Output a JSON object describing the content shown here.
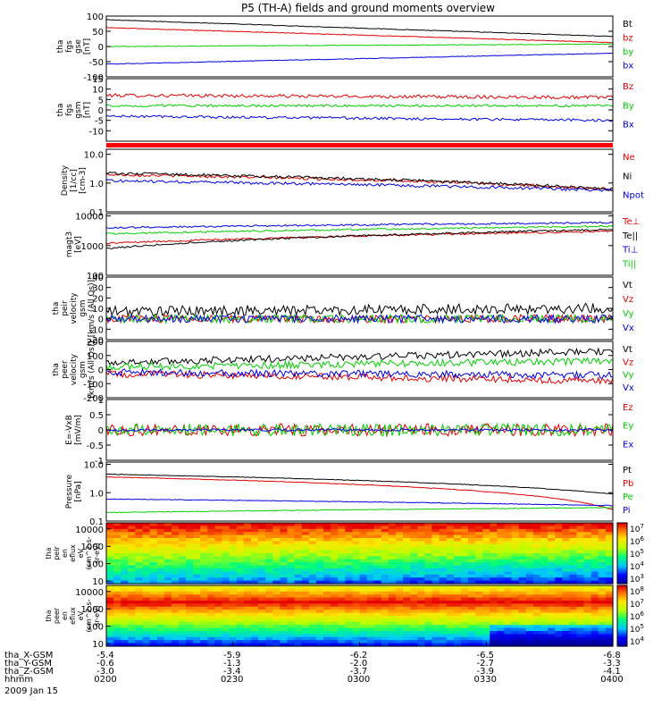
{
  "chart_data": {
    "type": "line",
    "title": "P5 (TH-A) fields and ground moments overview",
    "date": "2009 Jan 15",
    "panels": [
      {
        "id": "fgs-gse",
        "ylabel": [
          "tha",
          "fgs",
          "gse",
          "[nT]"
        ],
        "ylim": [
          -100,
          100
        ],
        "yticks": [
          100,
          50,
          0,
          -50,
          -100
        ],
        "log": false,
        "series": [
          {
            "name": "Bt",
            "color": "#000000",
            "start": 88,
            "end": 33,
            "noise": 1
          },
          {
            "name": "bz",
            "color": "#e00000",
            "start": 62,
            "end": 13,
            "noise": 1
          },
          {
            "name": "by",
            "color": "#00d000",
            "start": 0,
            "end": 8,
            "noise": 1
          },
          {
            "name": "bx",
            "color": "#0000e0",
            "start": -58,
            "end": -22,
            "noise": 1
          }
        ]
      },
      {
        "id": "fgs-gsm",
        "ylabel": [
          "tha",
          "fgs",
          "gsm",
          "[nT]"
        ],
        "ylim": [
          -15,
          15
        ],
        "yticks": [
          15,
          10,
          5,
          0,
          -5,
          -10
        ],
        "log": false,
        "series": [
          {
            "name": "Bz",
            "color": "#e00000",
            "start": 7,
            "end": 6,
            "noise": 0.8
          },
          {
            "name": "By",
            "color": "#00d000",
            "start": 2,
            "end": 2,
            "noise": 0.6
          },
          {
            "name": "Bx",
            "color": "#0000e0",
            "start": -3,
            "end": -5,
            "noise": 0.6
          }
        ]
      },
      {
        "id": "density",
        "ylabel": [
          "Density",
          "[1/cc]",
          "[cm-3]"
        ],
        "ylim": [
          0.1,
          15
        ],
        "yticks": [
          10.0,
          1.0,
          0.1
        ],
        "log": true,
        "series": [
          {
            "name": "Ne",
            "color": "#e00000",
            "start": 2.0,
            "end": 0.6,
            "noise": 0.05
          },
          {
            "name": "Ni",
            "color": "#000000",
            "start": 2.2,
            "end": 0.6,
            "noise": 0.05
          },
          {
            "name": "Npot",
            "color": "#0000e0",
            "start": 1.2,
            "end": 0.55,
            "noise": 0.05
          }
        ]
      },
      {
        "id": "temperature",
        "ylabel": [
          "magt3",
          "[eV]"
        ],
        "ylim": [
          100,
          12000
        ],
        "yticks": [
          10000,
          1000,
          100
        ],
        "log": true,
        "series": [
          {
            "name": "Te⊥",
            "color": "#e00000",
            "start": 1200,
            "end": 3000,
            "noise": 0.03
          },
          {
            "name": "Te||",
            "color": "#000000",
            "start": 800,
            "end": 3500,
            "noise": 0.03
          },
          {
            "name": "Ti⊥",
            "color": "#0000e0",
            "start": 4000,
            "end": 6000,
            "noise": 0.03
          },
          {
            "name": "Ti||",
            "color": "#00d000",
            "start": 2500,
            "end": 4500,
            "noise": 0.03
          }
        ]
      },
      {
        "id": "peir-velocity",
        "ylabel": [
          "tha",
          "peir",
          "velocity",
          "gsm",
          "[km/s (All Qs)]"
        ],
        "ylim": [
          -20,
          40
        ],
        "yticks": [
          40,
          30,
          20,
          10,
          0,
          -10,
          -20
        ],
        "log": false,
        "series": [
          {
            "name": "Vt",
            "color": "#000000",
            "start": 7,
            "end": 10,
            "noise": 5
          },
          {
            "name": "Vz",
            "color": "#e00000",
            "start": 0,
            "end": 0,
            "noise": 4
          },
          {
            "name": "Vy",
            "color": "#00d000",
            "start": 0,
            "end": 0,
            "noise": 4
          },
          {
            "name": "Vx",
            "color": "#0000e0",
            "start": 0,
            "end": 0,
            "noise": 4
          }
        ]
      },
      {
        "id": "peer-velocity",
        "ylabel": [
          "tha",
          "peer",
          "velocity",
          "gsm",
          "[km/s (All Qs)]"
        ],
        "ylim": [
          -200,
          200
        ],
        "yticks": [
          200,
          100,
          0,
          -100,
          -200
        ],
        "log": false,
        "series": [
          {
            "name": "Vt",
            "color": "#000000",
            "start": 50,
            "end": 130,
            "noise": 25
          },
          {
            "name": "Vz",
            "color": "#e00000",
            "start": -30,
            "end": -80,
            "noise": 25
          },
          {
            "name": "Vy",
            "color": "#00d000",
            "start": 20,
            "end": 60,
            "noise": 25
          },
          {
            "name": "Vx",
            "color": "#0000e0",
            "start": -20,
            "end": -40,
            "noise": 25
          }
        ]
      },
      {
        "id": "efield",
        "ylabel": [
          "E=-VxB",
          "[mV/m]"
        ],
        "ylim": [
          -1.0,
          1.0
        ],
        "yticks": [
          1.0,
          0.5,
          0.0,
          -0.5,
          -1.0
        ],
        "log": false,
        "series": [
          {
            "name": "Ez",
            "color": "#e00000",
            "start": 0,
            "end": 0,
            "noise": 0.2
          },
          {
            "name": "Ey",
            "color": "#00d000",
            "start": 0,
            "end": 0,
            "noise": 0.2
          },
          {
            "name": "Ex",
            "color": "#0000e0",
            "start": 0,
            "end": 0,
            "noise": 0.04
          }
        ]
      },
      {
        "id": "pressure",
        "ylabel": [
          "Pressure",
          "[nPa]"
        ],
        "ylim": [
          0.1,
          12
        ],
        "yticks": [
          10.0,
          1.0,
          0.1
        ],
        "log": true,
        "series": [
          {
            "name": "Pt",
            "color": "#000000",
            "start": 4.5,
            "end": 0.9,
            "noise": 0.01
          },
          {
            "name": "Pb",
            "color": "#e00000",
            "start": 3.6,
            "end": 0.25,
            "noise": 0.01
          },
          {
            "name": "Pe",
            "color": "#00d000",
            "start": 0.2,
            "end": 0.3,
            "noise": 0.01
          },
          {
            "name": "Pi",
            "color": "#0000e0",
            "start": 0.6,
            "end": 0.35,
            "noise": 0.01
          }
        ]
      }
    ],
    "spectrograms": [
      {
        "id": "peir-eflux",
        "ylabel": [
          "tha",
          "peir",
          "en",
          "eflux",
          "eV",
          "(cm^2-s-",
          "sr-eV)"
        ],
        "yticks": [
          10000,
          1000,
          100,
          10
        ],
        "colorbar_ticks": [
          "10^7",
          "10^6",
          "10^5",
          "10^4",
          "10^3"
        ],
        "colorbar_range": [
          2.5,
          7.3
        ]
      },
      {
        "id": "peer-eflux",
        "ylabel": [
          "tha",
          "peer",
          "en",
          "eflux",
          "eV",
          "(cm^2-s-",
          "sr-eV)"
        ],
        "yticks": [
          10000,
          1000,
          100,
          10
        ],
        "colorbar_ticks": [
          "10^8",
          "10^7",
          "10^6",
          "10^5",
          "10^4"
        ],
        "colorbar_range": [
          3.7,
          8.3
        ]
      }
    ],
    "xaxis": {
      "row_labels": [
        "tha_X-GSM",
        "tha_Y-GSM",
        "tha_Z-GSM",
        "hhmm"
      ],
      "ticks": [
        {
          "x": "-5.4",
          "y": "-0.6",
          "z": "-3.0",
          "hhmm": "0200"
        },
        {
          "x": "-5.9",
          "y": "-1.3",
          "z": "-3.4",
          "hhmm": "0230"
        },
        {
          "x": "-6.2",
          "y": "-2.0",
          "z": "-3.7",
          "hhmm": "0300"
        },
        {
          "x": "-6.5",
          "y": "-2.7",
          "z": "-3.9",
          "hhmm": "0330"
        },
        {
          "x": "-6.8",
          "y": "-3.3",
          "z": "-4.1",
          "hhmm": "0400"
        }
      ]
    }
  }
}
